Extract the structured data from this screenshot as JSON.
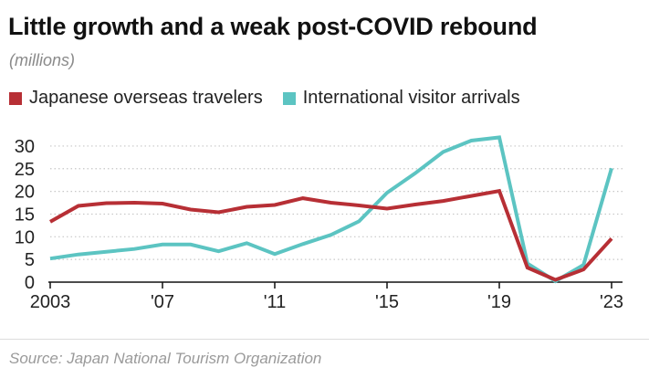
{
  "title": "Little growth and a weak post-COVID rebound",
  "subtitle": "(millions)",
  "source": "Source: Japan National Tourism Organization",
  "colors": {
    "japanese": "#b72f35",
    "international": "#5cc4c2",
    "grid": "#c8c8c8",
    "axis": "#111111"
  },
  "chart_data": {
    "type": "line",
    "x": [
      2003,
      2004,
      2005,
      2006,
      2007,
      2008,
      2009,
      2010,
      2011,
      2012,
      2013,
      2014,
      2015,
      2016,
      2017,
      2018,
      2019,
      2020,
      2021,
      2022,
      2023
    ],
    "x_ticks": [
      2003,
      2007,
      2011,
      2015,
      2019,
      2023
    ],
    "x_tick_labels": [
      "2003",
      "'07",
      "'11",
      "'15",
      "'19",
      "'23"
    ],
    "y_ticks": [
      0,
      5,
      10,
      15,
      20,
      25,
      30
    ],
    "ylim": [
      0,
      32
    ],
    "grid": "horizontal dotted",
    "legend_position": "top",
    "series": [
      {
        "name": "Japanese overseas travelers",
        "color_key": "japanese",
        "values": [
          13.3,
          16.8,
          17.4,
          17.5,
          17.3,
          16.0,
          15.4,
          16.6,
          17.0,
          18.5,
          17.5,
          16.9,
          16.2,
          17.1,
          17.9,
          19.0,
          20.1,
          3.2,
          0.5,
          2.8,
          9.6
        ]
      },
      {
        "name": "International visitor arrivals",
        "color_key": "international",
        "values": [
          5.2,
          6.1,
          6.7,
          7.3,
          8.3,
          8.3,
          6.8,
          8.6,
          6.2,
          8.4,
          10.4,
          13.4,
          19.7,
          24.0,
          28.7,
          31.2,
          31.9,
          4.1,
          0.2,
          3.8,
          25.1
        ]
      }
    ]
  }
}
